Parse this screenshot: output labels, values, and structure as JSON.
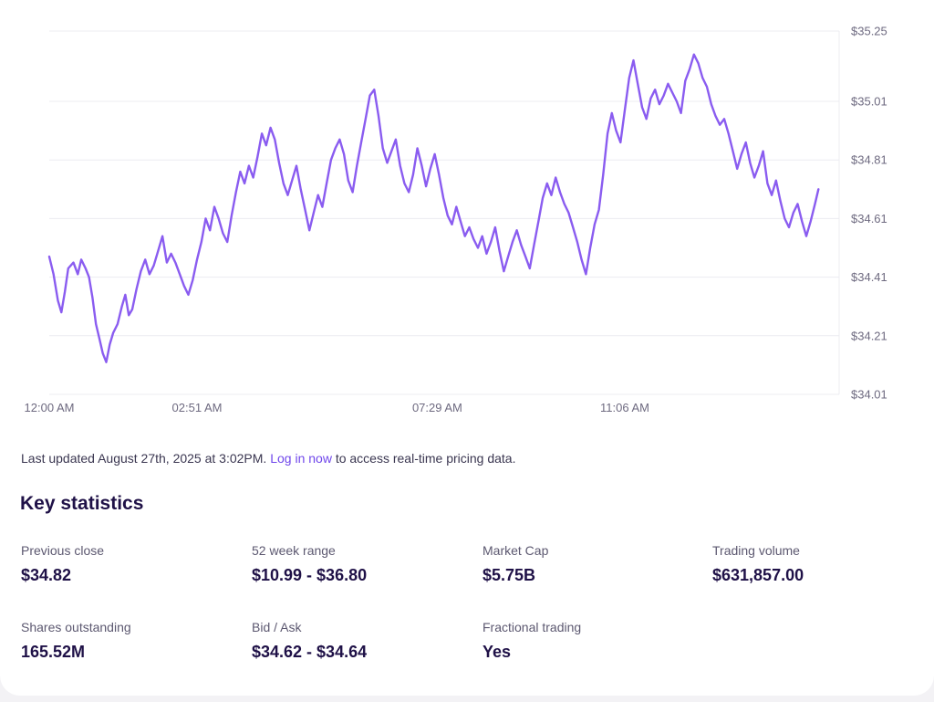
{
  "colors": {
    "line": "#8a5cf0",
    "grid": "#ececf1",
    "tick_text": "#6e6a80",
    "link": "#7047eb",
    "heading": "#1f1147"
  },
  "chart_data": {
    "type": "line",
    "title": "",
    "xlabel": "",
    "ylabel": "",
    "axis_side": "right",
    "grid": true,
    "ylim": [
      34.01,
      35.25
    ],
    "xlim_minutes": [
      0,
      914
    ],
    "y_ticks": [
      "$35.25",
      "$35.01",
      "$34.81",
      "$34.61",
      "$34.41",
      "$34.21",
      "$34.01"
    ],
    "y_tick_values": [
      35.25,
      35.01,
      34.81,
      34.61,
      34.41,
      34.21,
      34.01
    ],
    "x_ticks": [
      "12:00 AM",
      "02:51 AM",
      "07:29 AM",
      "11:06 AM"
    ],
    "x_tick_minutes": [
      0,
      171,
      449,
      666
    ],
    "series": [
      {
        "values_by_minute": [
          [
            0,
            34.48
          ],
          [
            5,
            34.42
          ],
          [
            10,
            34.33
          ],
          [
            14,
            34.29
          ],
          [
            18,
            34.36
          ],
          [
            22,
            34.44
          ],
          [
            28,
            34.46
          ],
          [
            33,
            34.42
          ],
          [
            37,
            34.47
          ],
          [
            42,
            34.44
          ],
          [
            46,
            34.41
          ],
          [
            50,
            34.34
          ],
          [
            54,
            34.25
          ],
          [
            58,
            34.2
          ],
          [
            62,
            34.15
          ],
          [
            66,
            34.12
          ],
          [
            70,
            34.18
          ],
          [
            74,
            34.22
          ],
          [
            79,
            34.25
          ],
          [
            84,
            34.31
          ],
          [
            88,
            34.35
          ],
          [
            92,
            34.28
          ],
          [
            96,
            34.3
          ],
          [
            101,
            34.37
          ],
          [
            106,
            34.43
          ],
          [
            111,
            34.47
          ],
          [
            116,
            34.42
          ],
          [
            121,
            34.45
          ],
          [
            126,
            34.5
          ],
          [
            131,
            34.55
          ],
          [
            136,
            34.46
          ],
          [
            141,
            34.49
          ],
          [
            146,
            34.46
          ],
          [
            151,
            34.42
          ],
          [
            156,
            34.38
          ],
          [
            161,
            34.35
          ],
          [
            166,
            34.4
          ],
          [
            171,
            34.47
          ],
          [
            176,
            34.53
          ],
          [
            181,
            34.61
          ],
          [
            186,
            34.57
          ],
          [
            191,
            34.65
          ],
          [
            196,
            34.61
          ],
          [
            201,
            34.56
          ],
          [
            206,
            34.53
          ],
          [
            211,
            34.62
          ],
          [
            216,
            34.7
          ],
          [
            221,
            34.77
          ],
          [
            226,
            34.73
          ],
          [
            231,
            34.79
          ],
          [
            236,
            34.75
          ],
          [
            241,
            34.82
          ],
          [
            246,
            34.9
          ],
          [
            251,
            34.86
          ],
          [
            256,
            34.92
          ],
          [
            261,
            34.88
          ],
          [
            266,
            34.8
          ],
          [
            271,
            34.73
          ],
          [
            276,
            34.69
          ],
          [
            281,
            34.74
          ],
          [
            286,
            34.79
          ],
          [
            291,
            34.71
          ],
          [
            296,
            34.64
          ],
          [
            301,
            34.57
          ],
          [
            306,
            34.63
          ],
          [
            311,
            34.69
          ],
          [
            316,
            34.65
          ],
          [
            321,
            34.73
          ],
          [
            326,
            34.81
          ],
          [
            331,
            34.85
          ],
          [
            336,
            34.88
          ],
          [
            341,
            34.83
          ],
          [
            346,
            34.74
          ],
          [
            351,
            34.7
          ],
          [
            356,
            34.79
          ],
          [
            361,
            34.87
          ],
          [
            366,
            34.95
          ],
          [
            371,
            35.03
          ],
          [
            376,
            35.05
          ],
          [
            381,
            34.96
          ],
          [
            386,
            34.85
          ],
          [
            391,
            34.8
          ],
          [
            396,
            34.84
          ],
          [
            401,
            34.88
          ],
          [
            406,
            34.79
          ],
          [
            411,
            34.73
          ],
          [
            416,
            34.7
          ],
          [
            421,
            34.76
          ],
          [
            426,
            34.85
          ],
          [
            431,
            34.79
          ],
          [
            436,
            34.72
          ],
          [
            441,
            34.78
          ],
          [
            446,
            34.83
          ],
          [
            451,
            34.76
          ],
          [
            456,
            34.68
          ],
          [
            461,
            34.62
          ],
          [
            466,
            34.59
          ],
          [
            471,
            34.65
          ],
          [
            476,
            34.6
          ],
          [
            481,
            34.55
          ],
          [
            486,
            34.58
          ],
          [
            491,
            34.54
          ],
          [
            496,
            34.51
          ],
          [
            501,
            34.55
          ],
          [
            506,
            34.49
          ],
          [
            511,
            34.53
          ],
          [
            516,
            34.58
          ],
          [
            521,
            34.5
          ],
          [
            526,
            34.43
          ],
          [
            531,
            34.48
          ],
          [
            536,
            34.53
          ],
          [
            541,
            34.57
          ],
          [
            546,
            34.52
          ],
          [
            551,
            34.48
          ],
          [
            556,
            34.44
          ],
          [
            561,
            34.52
          ],
          [
            566,
            34.6
          ],
          [
            571,
            34.68
          ],
          [
            576,
            34.73
          ],
          [
            581,
            34.69
          ],
          [
            586,
            34.75
          ],
          [
            591,
            34.7
          ],
          [
            596,
            34.66
          ],
          [
            601,
            34.63
          ],
          [
            606,
            34.58
          ],
          [
            611,
            34.53
          ],
          [
            616,
            34.47
          ],
          [
            621,
            34.42
          ],
          [
            626,
            34.51
          ],
          [
            631,
            34.59
          ],
          [
            636,
            34.64
          ],
          [
            641,
            34.76
          ],
          [
            646,
            34.9
          ],
          [
            651,
            34.97
          ],
          [
            656,
            34.91
          ],
          [
            661,
            34.87
          ],
          [
            666,
            34.98
          ],
          [
            671,
            35.09
          ],
          [
            676,
            35.15
          ],
          [
            681,
            35.07
          ],
          [
            686,
            34.99
          ],
          [
            691,
            34.95
          ],
          [
            696,
            35.02
          ],
          [
            701,
            35.05
          ],
          [
            706,
            35.0
          ],
          [
            711,
            35.03
          ],
          [
            716,
            35.07
          ],
          [
            721,
            35.04
          ],
          [
            726,
            35.01
          ],
          [
            731,
            34.97
          ],
          [
            736,
            35.08
          ],
          [
            741,
            35.12
          ],
          [
            746,
            35.17
          ],
          [
            751,
            35.14
          ],
          [
            756,
            35.09
          ],
          [
            761,
            35.06
          ],
          [
            766,
            35.0
          ],
          [
            771,
            34.96
          ],
          [
            776,
            34.93
          ],
          [
            781,
            34.95
          ],
          [
            786,
            34.9
          ],
          [
            791,
            34.84
          ],
          [
            796,
            34.78
          ],
          [
            801,
            34.83
          ],
          [
            806,
            34.87
          ],
          [
            811,
            34.8
          ],
          [
            816,
            34.75
          ],
          [
            821,
            34.79
          ],
          [
            826,
            34.84
          ],
          [
            831,
            34.73
          ],
          [
            836,
            34.69
          ],
          [
            841,
            34.74
          ],
          [
            846,
            34.67
          ],
          [
            851,
            34.61
          ],
          [
            856,
            34.58
          ],
          [
            861,
            34.63
          ],
          [
            866,
            34.66
          ],
          [
            871,
            34.6
          ],
          [
            876,
            34.55
          ],
          [
            881,
            34.6
          ],
          [
            886,
            34.66
          ],
          [
            890,
            34.71
          ]
        ]
      }
    ]
  },
  "notice": {
    "prefix": "Last updated August 27th, 2025 at 3:02PM.",
    "link_label": "Log in now",
    "suffix": "to access real-time pricing data."
  },
  "stats": {
    "title": "Key statistics",
    "previous_close": {
      "label": "Previous close",
      "value": "$34.82"
    },
    "week_range": {
      "label": "52 week range",
      "value": "$10.99 - $36.80"
    },
    "market_cap": {
      "label": "Market Cap",
      "value": "$5.75B"
    },
    "trading_volume": {
      "label": "Trading volume",
      "value": "$631,857.00"
    },
    "shares_outstanding": {
      "label": "Shares outstanding",
      "value": "165.52M"
    },
    "bid_ask": {
      "label": "Bid / Ask",
      "value": "$34.62 - $34.64"
    },
    "fractional_trading": {
      "label": "Fractional trading",
      "value": "Yes"
    }
  }
}
